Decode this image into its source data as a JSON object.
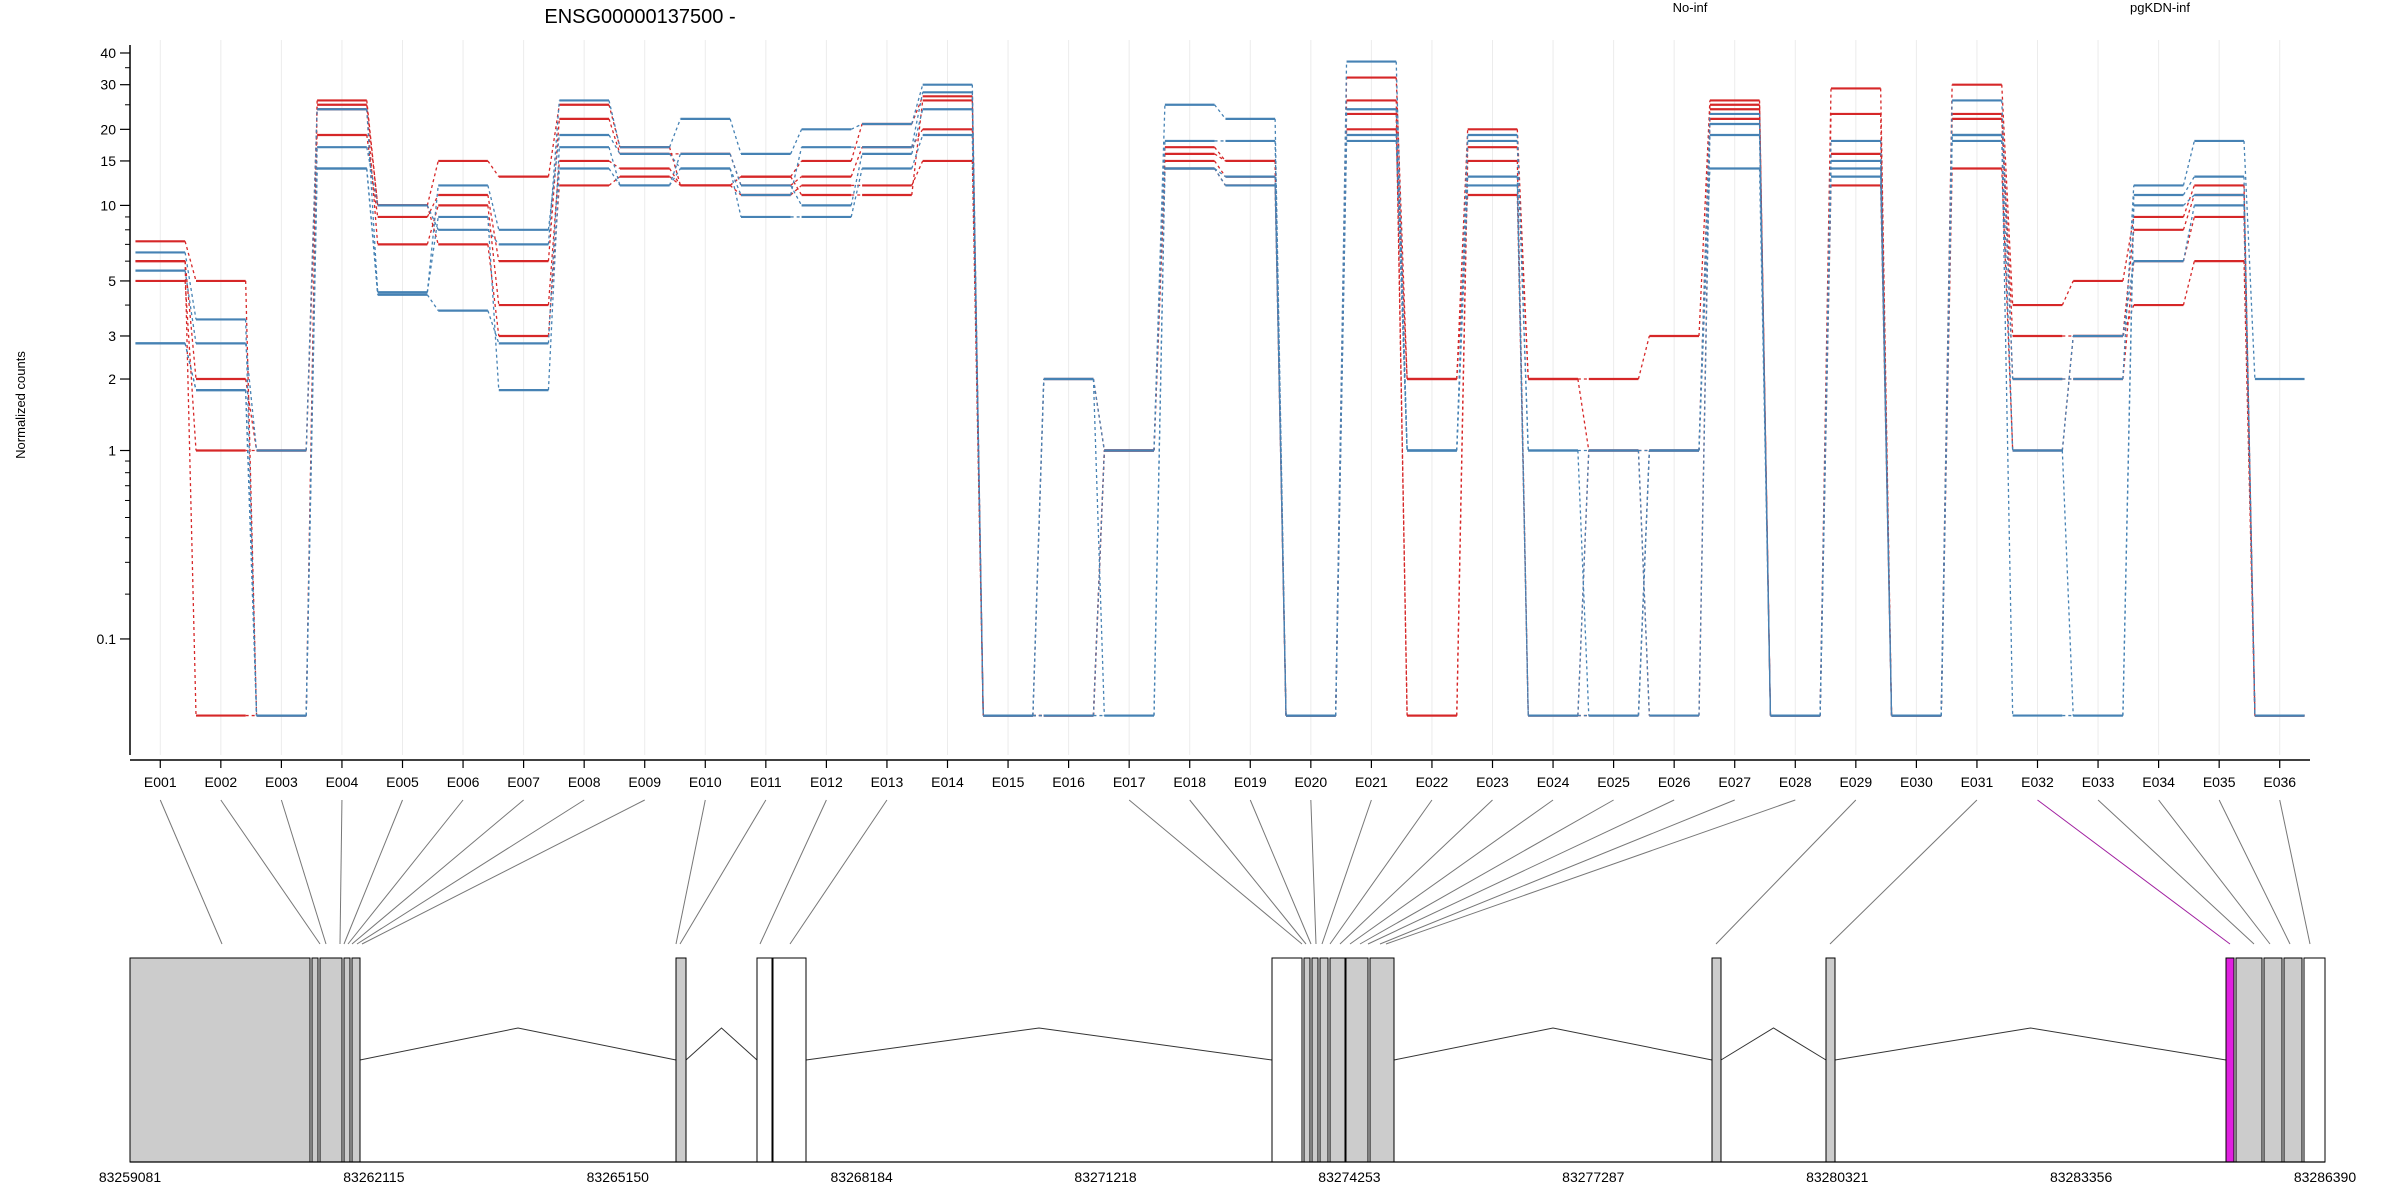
{
  "chart_data": {
    "type": "line",
    "title": "ENSG00000137500 -",
    "ylabel": "Normalized counts",
    "y_scale": "log (counts + 0.1)",
    "ylim": [
      0.07,
      45
    ],
    "y_ticks": [
      0.1,
      1,
      2,
      3,
      5,
      10,
      15,
      20,
      30,
      40
    ],
    "y_tick_labels": [
      "0.1",
      "1",
      "2",
      "3",
      "5",
      "10",
      "15",
      "20",
      "30",
      "40"
    ],
    "grid": true,
    "legend_position": "top",
    "legend": [
      {
        "label": "No-inf",
        "color": "#d62728"
      },
      {
        "label": "pgKDN-inf",
        "color": "#4682b4"
      }
    ],
    "categories": [
      "E001",
      "E002",
      "E003",
      "E004",
      "E005",
      "E006",
      "E007",
      "E008",
      "E009",
      "E010",
      "E011",
      "E012",
      "E013",
      "E014",
      "E015",
      "E016",
      "E017",
      "E018",
      "E019",
      "E020",
      "E021",
      "E022",
      "E023",
      "E024",
      "E025",
      "E026",
      "E027",
      "E028",
      "E029",
      "E030",
      "E031",
      "E032",
      "E033",
      "E034",
      "E035",
      "E036"
    ],
    "series": [
      {
        "group": "No-inf",
        "values": [
          7.2,
          5.0,
          0,
          25,
          10,
          15,
          13,
          25,
          17,
          12,
          13,
          15,
          21,
          27,
          0,
          2,
          1,
          17,
          15,
          0,
          32,
          2,
          20,
          2,
          2,
          3,
          26,
          0,
          29,
          0,
          30,
          4,
          5,
          9,
          12,
          0
        ]
      },
      {
        "group": "No-inf",
        "values": [
          6.0,
          2.0,
          1,
          19,
          9,
          11,
          6,
          22,
          16,
          16,
          12,
          13,
          17,
          20,
          0,
          0,
          1,
          15,
          13,
          0,
          26,
          0,
          17,
          2,
          1,
          1,
          24,
          0,
          23,
          0,
          23,
          3,
          3,
          8,
          11,
          0
        ]
      },
      {
        "group": "No-inf",
        "values": [
          5.0,
          1.0,
          1,
          24,
          7,
          10,
          4,
          15,
          14,
          12,
          11,
          12,
          12,
          15,
          0,
          0,
          1,
          14,
          12,
          0,
          23,
          0,
          15,
          0,
          1,
          0,
          22,
          0,
          16,
          0,
          22,
          2,
          2,
          6,
          9,
          0
        ]
      },
      {
        "group": "No-inf",
        "values": [
          6.0,
          0,
          0,
          26,
          10,
          7,
          3,
          12,
          13,
          12,
          13,
          11,
          11,
          26,
          0,
          0,
          1,
          16,
          15,
          0,
          20,
          2,
          11,
          0,
          0,
          1,
          25,
          0,
          12,
          0,
          14,
          1,
          3,
          4,
          6,
          0
        ]
      },
      {
        "group": "pgKDN-inf",
        "values": [
          6.5,
          3.5,
          0,
          17,
          10,
          8,
          7,
          26,
          17,
          22,
          16,
          20,
          21,
          30,
          0,
          2,
          1,
          25,
          22,
          0,
          37,
          1,
          19,
          1,
          1,
          1,
          23,
          0,
          18,
          0,
          26,
          2,
          2,
          12,
          18,
          2
        ]
      },
      {
        "group": "pgKDN-inf",
        "values": [
          5.5,
          2.8,
          1,
          24,
          4.5,
          12,
          8,
          19,
          16,
          14,
          11,
          17,
          17,
          28,
          0,
          0,
          1,
          18,
          18,
          0,
          24,
          1,
          18,
          1,
          0,
          1,
          21,
          0,
          15,
          0,
          19,
          1,
          0,
          11,
          13,
          0
        ]
      },
      {
        "group": "pgKDN-inf",
        "values": [
          2.8,
          1.8,
          0,
          14,
          4.4,
          3.8,
          2.8,
          17,
          12,
          16,
          12,
          10,
          16,
          24,
          0,
          0,
          0,
          14,
          13,
          0,
          19,
          1,
          13,
          0,
          1,
          0,
          19,
          0,
          14,
          0,
          19,
          0,
          0,
          10,
          11,
          0
        ]
      },
      {
        "group": "pgKDN-inf",
        "values": [
          2.8,
          1.8,
          0,
          14,
          4.5,
          9,
          1.8,
          14,
          12,
          14,
          9,
          9,
          14,
          19,
          0,
          2,
          0,
          14,
          12,
          0,
          18,
          1,
          12,
          0,
          0,
          1,
          14,
          0,
          13,
          0,
          18,
          1,
          3,
          6,
          10,
          0
        ]
      }
    ],
    "gene_model": {
      "coordinate_labels": [
        "83259081",
        "83262115",
        "83265150",
        "83268184",
        "83271218",
        "83274253",
        "83277287",
        "83280321",
        "83283356",
        "83286390"
      ],
      "highlight_color": "#e020e0",
      "highlighted_exon": "E032"
    }
  }
}
